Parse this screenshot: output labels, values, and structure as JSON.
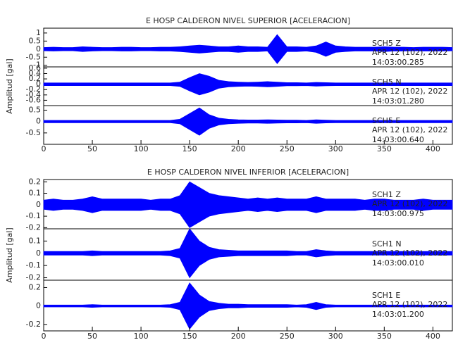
{
  "chart_data": [
    {
      "type": "envelope",
      "title": "E HOSP CALDERON NIVEL SUPERIOR [ACELERACION]",
      "y_label": "Amplitud [gal]",
      "xlim": [
        0,
        420
      ],
      "xticks": [
        0,
        50,
        100,
        150,
        200,
        250,
        300,
        350,
        400
      ],
      "x": [
        0,
        10,
        20,
        30,
        40,
        50,
        60,
        70,
        80,
        90,
        100,
        110,
        120,
        130,
        140,
        150,
        160,
        170,
        180,
        190,
        200,
        210,
        220,
        230,
        240,
        250,
        260,
        270,
        280,
        290,
        300,
        310,
        320,
        330,
        340,
        350,
        360,
        370,
        380,
        390,
        400,
        410,
        420
      ],
      "series": [
        {
          "name": "SCH5   Z",
          "date": "APR 12 (102), 2022",
          "time": "14:03:00.285",
          "color": "#0000ff",
          "ylim": [
            -1.1,
            1.3
          ],
          "yticks": [
            -1.0,
            -0.5,
            0.0,
            0.5,
            1.0
          ],
          "values": [
            0.1,
            0.12,
            0.1,
            0.1,
            0.15,
            0.12,
            0.1,
            0.1,
            0.12,
            0.12,
            0.1,
            0.1,
            0.12,
            0.12,
            0.15,
            0.2,
            0.25,
            0.2,
            0.15,
            0.15,
            0.2,
            0.15,
            0.15,
            0.12,
            0.9,
            0.15,
            0.15,
            0.12,
            0.2,
            0.45,
            0.2,
            0.15,
            0.12,
            0.12,
            0.12,
            0.15,
            0.12,
            0.12,
            0.1,
            0.12,
            0.12,
            0.12,
            0.1
          ]
        },
        {
          "name": "SCH5   N",
          "date": "APR 12 (102), 2022",
          "time": "14:03:01.280",
          "color": "#0000ff",
          "ylim": [
            -0.8,
            0.65
          ],
          "yticks": [
            -0.6,
            -0.4,
            -0.2,
            0.0,
            0.2,
            0.4,
            0.6
          ],
          "values": [
            0.05,
            0.05,
            0.05,
            0.05,
            0.05,
            0.05,
            0.05,
            0.05,
            0.05,
            0.05,
            0.05,
            0.05,
            0.05,
            0.05,
            0.08,
            0.25,
            0.4,
            0.3,
            0.15,
            0.1,
            0.08,
            0.07,
            0.08,
            0.1,
            0.08,
            0.06,
            0.06,
            0.05,
            0.07,
            0.06,
            0.05,
            0.05,
            0.05,
            0.05,
            0.05,
            0.05,
            0.05,
            0.05,
            0.05,
            0.05,
            0.05,
            0.05,
            0.05
          ]
        },
        {
          "name": "SCH5   E",
          "date": "APR 12 (102), 2022",
          "time": "14:03:00.640",
          "color": "#0000ff",
          "ylim": [
            -1.0,
            0.7
          ],
          "yticks": [
            -0.5,
            0.0,
            0.5
          ],
          "values": [
            0.05,
            0.05,
            0.05,
            0.05,
            0.05,
            0.05,
            0.05,
            0.05,
            0.05,
            0.05,
            0.05,
            0.05,
            0.05,
            0.05,
            0.1,
            0.35,
            0.6,
            0.3,
            0.15,
            0.1,
            0.08,
            0.07,
            0.07,
            0.08,
            0.07,
            0.06,
            0.06,
            0.05,
            0.08,
            0.06,
            0.05,
            0.05,
            0.05,
            0.05,
            0.05,
            0.05,
            0.05,
            0.05,
            0.05,
            0.05,
            0.05,
            0.05,
            0.05
          ]
        }
      ]
    },
    {
      "type": "envelope",
      "title": "E HOSP CALDERON NIVEL INFERIOR [ACELERACION]",
      "y_label": "Amplitud [gal]",
      "xlim": [
        0,
        420
      ],
      "xticks": [
        0,
        50,
        100,
        150,
        200,
        250,
        300,
        350,
        400
      ],
      "x": [
        0,
        10,
        20,
        30,
        40,
        50,
        60,
        70,
        80,
        90,
        100,
        110,
        120,
        130,
        140,
        150,
        160,
        170,
        180,
        190,
        200,
        210,
        220,
        230,
        240,
        250,
        260,
        270,
        280,
        290,
        300,
        310,
        320,
        330,
        340,
        350,
        360,
        370,
        380,
        390,
        400,
        410,
        420
      ],
      "series": [
        {
          "name": "SCH1   Z",
          "date": "APR 12 (102), 2022",
          "time": "14:03:00.975",
          "color": "#0000ff",
          "ylim": [
            -0.21,
            0.22
          ],
          "yticks": [
            -0.2,
            -0.1,
            0.0,
            0.1,
            0.2
          ],
          "values": [
            0.04,
            0.05,
            0.04,
            0.04,
            0.05,
            0.07,
            0.05,
            0.05,
            0.05,
            0.05,
            0.05,
            0.04,
            0.05,
            0.05,
            0.08,
            0.2,
            0.15,
            0.1,
            0.08,
            0.07,
            0.06,
            0.05,
            0.06,
            0.05,
            0.06,
            0.05,
            0.05,
            0.05,
            0.07,
            0.05,
            0.05,
            0.05,
            0.05,
            0.04,
            0.05,
            0.05,
            0.04,
            0.04,
            0.04,
            0.05,
            0.04,
            0.04,
            0.04
          ]
        },
        {
          "name": "SCH1   N",
          "date": "APR 12 (102), 2022",
          "time": "14:03:00.010",
          "color": "#0000ff",
          "ylim": [
            -0.22,
            0.2
          ],
          "yticks": [
            -0.2,
            -0.1,
            0.0,
            0.1
          ],
          "values": [
            0.015,
            0.015,
            0.015,
            0.015,
            0.015,
            0.02,
            0.015,
            0.015,
            0.015,
            0.015,
            0.015,
            0.015,
            0.015,
            0.02,
            0.04,
            0.2,
            0.1,
            0.05,
            0.03,
            0.025,
            0.02,
            0.02,
            0.02,
            0.02,
            0.02,
            0.02,
            0.015,
            0.015,
            0.03,
            0.02,
            0.015,
            0.015,
            0.015,
            0.015,
            0.015,
            0.015,
            0.015,
            0.015,
            0.015,
            0.015,
            0.015,
            0.015,
            0.015
          ]
        },
        {
          "name": "SCH1   E",
          "date": "APR 12 (102), 2022",
          "time": "14:03:01.200",
          "color": "#0000ff",
          "ylim": [
            -0.27,
            0.28
          ],
          "yticks": [
            -0.2,
            0.0,
            0.2
          ],
          "values": [
            0.01,
            0.01,
            0.01,
            0.01,
            0.01,
            0.015,
            0.01,
            0.01,
            0.01,
            0.01,
            0.01,
            0.01,
            0.01,
            0.015,
            0.04,
            0.25,
            0.12,
            0.05,
            0.03,
            0.02,
            0.02,
            0.015,
            0.015,
            0.015,
            0.015,
            0.015,
            0.01,
            0.015,
            0.04,
            0.015,
            0.01,
            0.01,
            0.01,
            0.01,
            0.01,
            0.01,
            0.01,
            0.01,
            0.01,
            0.01,
            0.01,
            0.01,
            0.01
          ]
        }
      ]
    }
  ]
}
